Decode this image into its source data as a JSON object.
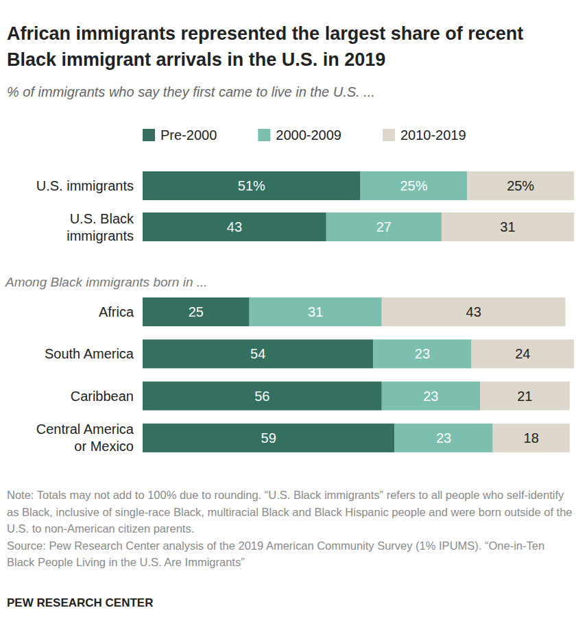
{
  "chart_data": {
    "type": "bar",
    "orientation": "horizontal",
    "stacked": true,
    "data_labels": true,
    "tick_labels": false,
    "legend": "top",
    "title": "African immigrants represented the largest share of recent Black immigrant arrivals in the U.S. in 2019",
    "subtitle": "% of immigrants who say they first came to live in the U.S. ...",
    "annotations": [
      "Among Black immigrants born in ..."
    ],
    "categories": [
      "U.S. immigrants",
      "U.S. Black immigrants",
      "Africa",
      "South America",
      "Caribbean",
      "Central America or Mexico"
    ],
    "xlim": [
      0,
      101
    ],
    "series": [
      {
        "name": "Pre-2000",
        "color": "#346f5f",
        "values": [
          51,
          43,
          25,
          54,
          56,
          59
        ],
        "value_labels": [
          "51%",
          "43",
          "25",
          "54",
          "56",
          "59"
        ]
      },
      {
        "name": "2000-2009",
        "color": "#7cbfae",
        "values": [
          25,
          27,
          31,
          23,
          23,
          23
        ],
        "value_labels": [
          "25%",
          "27",
          "31",
          "23",
          "23",
          "23"
        ]
      },
      {
        "name": "2010-2019",
        "color": "#ddd8cb",
        "values": [
          25,
          31,
          43,
          24,
          21,
          18
        ],
        "value_labels": [
          "25%",
          "31",
          "43",
          "24",
          "21",
          "18"
        ]
      }
    ],
    "note": "Note: Totals may not add to 100% due to rounding. “U.S. Black immigrants” refers to all people who self-identify as Black, inclusive of single-race Black, multiracial Black and Black Hispanic people and were born outside of the U.S. to non-American citizen parents.",
    "source": "Source: Pew Research Center analysis of the 2019 American Community Survey (1% IPUMS). “One-in-Ten Black People Living in the U.S. Are Immigrants”",
    "credit": "PEW RESEARCH CENTER"
  }
}
